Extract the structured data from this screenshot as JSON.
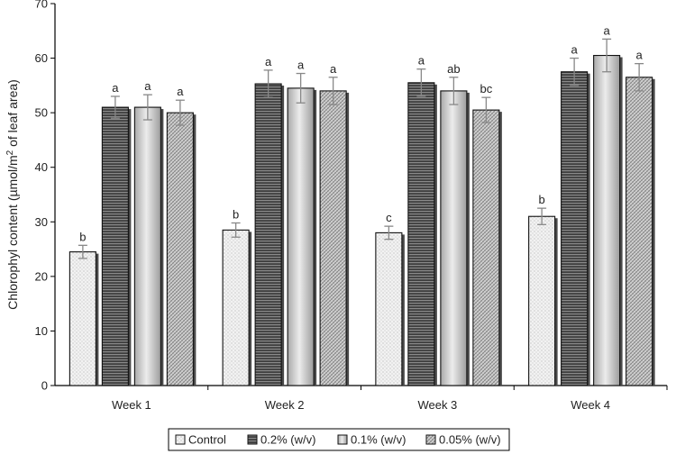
{
  "chart_data": {
    "type": "bar",
    "title": "",
    "xlabel": "",
    "ylabel_parts": [
      "Chlorophyl content (µmol/m",
      "2",
      " of leaf area)"
    ],
    "ylim": [
      0,
      70
    ],
    "yticks": [
      0,
      10,
      20,
      30,
      40,
      50,
      60,
      70
    ],
    "grid": false,
    "legend_position": "bottom",
    "error_bars": true,
    "categories": [
      "Week 1",
      "Week 2",
      "Week 3",
      "Week 4"
    ],
    "series": [
      {
        "name": "Control",
        "pattern": "dots",
        "color": "#efefef",
        "values": [
          24.5,
          28.5,
          28.0,
          31.0
        ],
        "errors": [
          1.2,
          1.3,
          1.2,
          1.5
        ],
        "labels": [
          "b",
          "b",
          "c",
          "b"
        ]
      },
      {
        "name": "0.2% (w/v)",
        "pattern": "hlines",
        "color": "#6a6a6a",
        "values": [
          51.0,
          55.3,
          55.5,
          57.5
        ],
        "errors": [
          2.0,
          2.5,
          2.5,
          2.5
        ],
        "labels": [
          "a",
          "a",
          "a",
          "a"
        ]
      },
      {
        "name": "0.1% (w/v)",
        "pattern": "gradient",
        "color": "#cfcfcf",
        "values": [
          51.0,
          54.5,
          54.0,
          60.5
        ],
        "errors": [
          2.3,
          2.7,
          2.5,
          3.0
        ],
        "labels": [
          "a",
          "a",
          "ab",
          "a"
        ]
      },
      {
        "name": "0.05% (w/v)",
        "pattern": "crosshatch",
        "color": "#a8a8a8",
        "values": [
          50.0,
          54.0,
          50.5,
          56.5
        ],
        "errors": [
          2.3,
          2.5,
          2.3,
          2.5
        ],
        "labels": [
          "a",
          "a",
          "bc",
          "a"
        ]
      }
    ]
  }
}
